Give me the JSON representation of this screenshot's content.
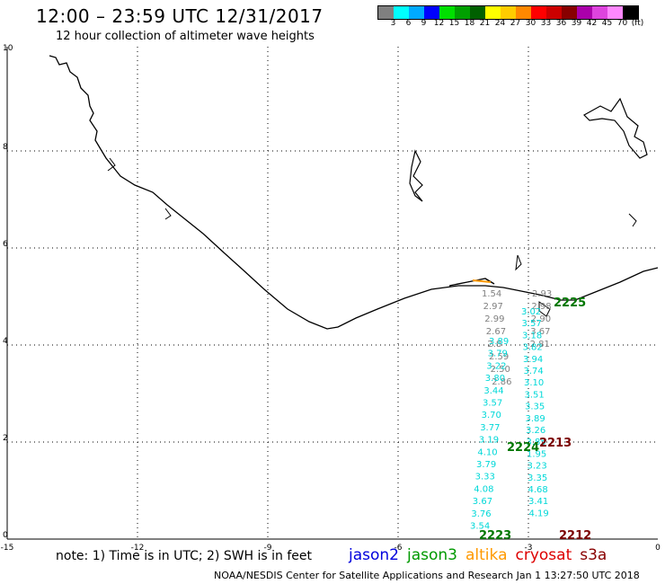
{
  "header": {
    "title": "12:00 – 23:59 UTC 12/31/2017",
    "subtitle": "12 hour collection of altimeter wave heights"
  },
  "color_scale": {
    "unit": "(ft)",
    "colors": [
      "#808080",
      "#00ffff",
      "#00aaff",
      "#0000ff",
      "#00e000",
      "#00a000",
      "#006000",
      "#ffff00",
      "#ffcc00",
      "#ff8800",
      "#ff0000",
      "#cc0000",
      "#880000",
      "#aa00aa",
      "#dd44dd",
      "#ff88ff",
      "#000000"
    ],
    "labels": [
      "3",
      "6",
      "9",
      "12",
      "15",
      "18",
      "21",
      "24",
      "27",
      "30",
      "33",
      "36",
      "39",
      "42",
      "45",
      "70"
    ]
  },
  "map": {
    "x_ticks": [
      "-15",
      "-12",
      "-9",
      "-6",
      "-3",
      "0"
    ],
    "y_ticks": [
      "0",
      "2",
      "4",
      "6",
      "8",
      "10"
    ],
    "grid": "dotted"
  },
  "tracks": [
    {
      "id": "2225",
      "color": "#007700",
      "sat": "jason3"
    },
    {
      "id": "2224",
      "color": "#007700",
      "sat": "jason3"
    },
    {
      "id": "2223",
      "color": "#007700",
      "sat": "jason3"
    },
    {
      "id": "2213",
      "color": "#7a0000",
      "sat": "cryosat"
    },
    {
      "id": "2212",
      "color": "#7a0000",
      "sat": "cryosat"
    }
  ],
  "gray_left": [
    "1.54",
    "2.97",
    "2.99",
    "2.67",
    "2.8",
    "2.59",
    "2.50",
    "2.86"
  ],
  "gray_right": [
    "2.93",
    "2.98",
    "2.90",
    "3.67",
    "2.81"
  ],
  "cyan_left": [
    "3.89",
    "3.79",
    "3.22",
    "3.80",
    "3.44",
    "3.57",
    "3.70",
    "3.77",
    "3.19",
    "4.10",
    "3.79",
    "3.33",
    "4.08",
    "3.67",
    "3.76",
    "3.54"
  ],
  "cyan_right": [
    "3.02",
    "3.57",
    "3.18",
    "3.82",
    "3.94",
    "3.74",
    "3.10",
    "3.51",
    "3.35",
    "3.89",
    "3.26",
    "3.85",
    "1.95",
    "3.23",
    "3.35",
    "4.68",
    "3.41",
    "4.19"
  ],
  "gray_right2": [
    "2.67",
    "1.95"
  ],
  "note": "note: 1) Time is in UTC; 2) SWH is in feet",
  "legend": [
    {
      "label": "jason2",
      "color": "#0000dd"
    },
    {
      "label": "jason3",
      "color": "#009900"
    },
    {
      "label": "altika",
      "color": "#ff9900"
    },
    {
      "label": "cryosat",
      "color": "#dd0000"
    },
    {
      "label": "s3a",
      "color": "#880000"
    }
  ],
  "credit": "NOAA/NESDIS Center for Satellite Applications and Research   Jan  1 13:27:50 UTC 2018"
}
